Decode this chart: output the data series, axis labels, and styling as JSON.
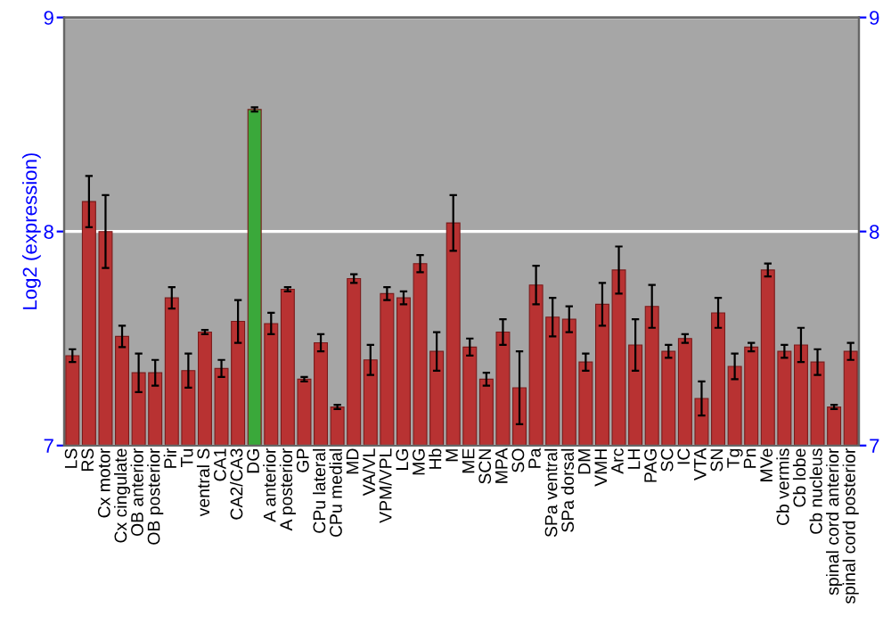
{
  "chart_data": {
    "type": "bar",
    "ylabel": "Log2 (expression)",
    "categories": [
      "LS",
      "RS",
      "Cx motor",
      "Cx cingulate",
      "OB anterior",
      "OB posterior",
      "Pir",
      "Tu",
      "ventral S",
      "CA1",
      "CA2/CA3",
      "DG",
      "A anterior",
      "A posterior",
      "GP",
      "CPu lateral",
      "CPu medial",
      "MD",
      "VA/VL",
      "VPM/VPL",
      "LG",
      "MG",
      "Hb",
      "M",
      "ME",
      "SCN",
      "MPA",
      "SO",
      "Pa",
      "SPa ventral",
      "SPa dorsal",
      "DM",
      "VMH",
      "Arc",
      "LH",
      "PAG",
      "SC",
      "IC",
      "VTA",
      "SN",
      "Tg",
      "Pn",
      "MVe",
      "Cb vermis",
      "Cb lobe",
      "Cb nucleus",
      "spinal cord anterior",
      "spinal cord posterior"
    ],
    "values": [
      7.42,
      8.14,
      8.0,
      7.51,
      7.34,
      7.34,
      7.69,
      7.35,
      7.53,
      7.36,
      7.58,
      8.57,
      7.57,
      7.73,
      7.31,
      7.48,
      7.18,
      7.78,
      7.4,
      7.71,
      7.69,
      7.85,
      7.44,
      8.04,
      7.46,
      7.31,
      7.53,
      7.27,
      7.75,
      7.6,
      7.59,
      7.39,
      7.66,
      7.82,
      7.47,
      7.65,
      7.44,
      7.5,
      7.22,
      7.62,
      7.37,
      7.46,
      7.82,
      7.44,
      7.47,
      7.39,
      7.18,
      7.44
    ],
    "errors": [
      0.03,
      0.12,
      0.17,
      0.05,
      0.09,
      0.06,
      0.05,
      0.08,
      0.01,
      0.04,
      0.1,
      0.01,
      0.05,
      0.01,
      0.01,
      0.04,
      0.01,
      0.02,
      0.07,
      0.03,
      0.03,
      0.04,
      0.09,
      0.13,
      0.04,
      0.03,
      0.06,
      0.17,
      0.09,
      0.09,
      0.06,
      0.04,
      0.1,
      0.11,
      0.12,
      0.1,
      0.03,
      0.02,
      0.08,
      0.07,
      0.06,
      0.02,
      0.03,
      0.03,
      0.08,
      0.06,
      0.01,
      0.04
    ],
    "colors": [
      "#b83232",
      "#b83232",
      "#b83232",
      "#b83232",
      "#b83232",
      "#b83232",
      "#b83232",
      "#b83232",
      "#b83232",
      "#b83232",
      "#b83232",
      "#3aa83a",
      "#b83232",
      "#b83232",
      "#b83232",
      "#b83232",
      "#b83232",
      "#b83232",
      "#b83232",
      "#b83232",
      "#b83232",
      "#b83232",
      "#b83232",
      "#b83232",
      "#b83232",
      "#b83232",
      "#b83232",
      "#b83232",
      "#b83232",
      "#b83232",
      "#b83232",
      "#b83232",
      "#b83232",
      "#b83232",
      "#b83232",
      "#b83232",
      "#b83232",
      "#b83232",
      "#b83232",
      "#b83232",
      "#b83232",
      "#b83232",
      "#b83232",
      "#b83232",
      "#b83232",
      "#b83232",
      "#b83232",
      "#b83232"
    ],
    "ylim": [
      7,
      9
    ],
    "yticks": [
      7,
      8,
      9
    ],
    "y2lim": [
      7,
      9
    ],
    "y2ticks": [
      7,
      8,
      9
    ],
    "grid": "y"
  }
}
